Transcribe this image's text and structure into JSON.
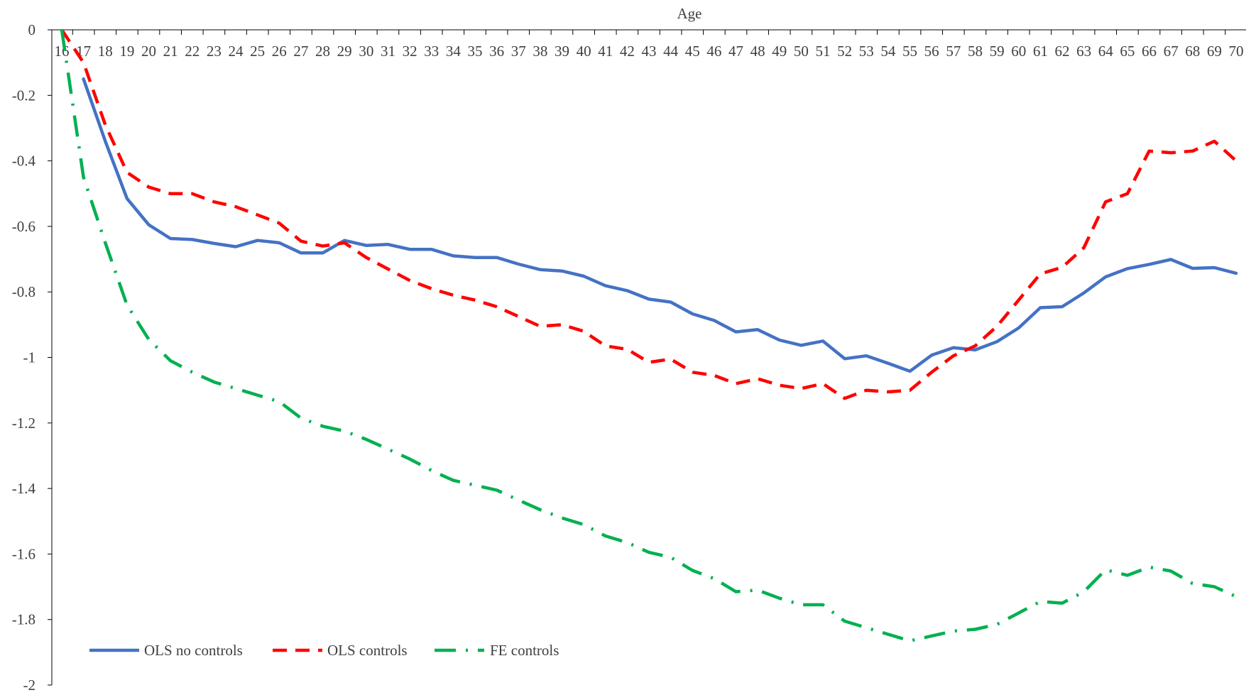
{
  "chart_data": {
    "type": "line",
    "title": "",
    "xlabel": "Age",
    "ylabel": "",
    "x": [
      16,
      17,
      18,
      19,
      20,
      21,
      22,
      23,
      24,
      25,
      26,
      27,
      28,
      29,
      30,
      31,
      32,
      33,
      34,
      35,
      36,
      37,
      38,
      39,
      40,
      41,
      42,
      43,
      44,
      45,
      46,
      47,
      48,
      49,
      50,
      51,
      52,
      53,
      54,
      55,
      56,
      57,
      58,
      59,
      60,
      61,
      62,
      63,
      64,
      65,
      66,
      67,
      68,
      69,
      70
    ],
    "ylim": [
      -2,
      0
    ],
    "yticks": [
      0,
      -0.2,
      -0.4,
      -0.6,
      -0.8,
      -1,
      -1.2,
      -1.4,
      -1.6,
      -1.8,
      -2
    ],
    "ytick_labels": [
      "0",
      "-0.2",
      "-0.4",
      "-0.6",
      "-0.8",
      "-1",
      "-1.2",
      "-1.4",
      "-1.6",
      "-1.8",
      "-2"
    ],
    "xtick_labels": [
      "16",
      "17",
      "18",
      "19",
      "20",
      "21",
      "22",
      "23",
      "24",
      "25",
      "26",
      "27",
      "28",
      "29",
      "30",
      "31",
      "32",
      "33",
      "34",
      "35",
      "36",
      "37",
      "38",
      "39",
      "40",
      "41",
      "42",
      "43",
      "44",
      "45",
      "46",
      "47",
      "48",
      "49",
      "50",
      "51",
      "52",
      "53",
      "54",
      "55",
      "56",
      "57",
      "58",
      "59",
      "60",
      "61",
      "62",
      "63",
      "64",
      "65",
      "66",
      "67",
      "68",
      "69",
      "70"
    ],
    "x_axis_position": "top",
    "grid": false,
    "legend_position": "bottom-left",
    "series": [
      {
        "name": "OLS no controls",
        "color": "#4472C4",
        "style": "solid",
        "values": [
          null,
          -0.15,
          -0.34,
          -0.515,
          -0.595,
          -0.637,
          -0.64,
          -0.652,
          -0.662,
          -0.643,
          -0.65,
          -0.681,
          -0.681,
          -0.643,
          -0.658,
          -0.655,
          -0.67,
          -0.67,
          -0.69,
          -0.695,
          -0.695,
          -0.715,
          -0.732,
          -0.736,
          -0.752,
          -0.781,
          -0.796,
          -0.822,
          -0.831,
          -0.867,
          -0.887,
          -0.922,
          -0.915,
          -0.947,
          -0.963,
          -0.95,
          -1.004,
          -0.995,
          -1.018,
          -1.042,
          -0.993,
          -0.97,
          -0.977,
          -0.952,
          -0.91,
          -0.848,
          -0.845,
          -0.803,
          -0.754,
          -0.729,
          -0.716,
          -0.701,
          -0.728,
          -0.726,
          -0.743
        ]
      },
      {
        "name": "OLS controls",
        "color": "#FF0000",
        "style": "dashed",
        "values": [
          0,
          -0.1,
          -0.29,
          -0.435,
          -0.48,
          -0.5,
          -0.5,
          -0.525,
          -0.54,
          -0.565,
          -0.59,
          -0.645,
          -0.66,
          -0.65,
          -0.695,
          -0.73,
          -0.765,
          -0.79,
          -0.81,
          -0.825,
          -0.845,
          -0.875,
          -0.905,
          -0.9,
          -0.92,
          -0.965,
          -0.975,
          -1.015,
          -1.005,
          -1.045,
          -1.055,
          -1.08,
          -1.065,
          -1.085,
          -1.095,
          -1.08,
          -1.125,
          -1.1,
          -1.105,
          -1.1,
          -1.045,
          -0.995,
          -0.965,
          -0.905,
          -0.825,
          -0.745,
          -0.725,
          -0.665,
          -0.525,
          -0.5,
          -0.37,
          -0.375,
          -0.37,
          -0.34,
          -0.4
        ]
      },
      {
        "name": "FE controls",
        "color": "#00B050",
        "style": "dashdot",
        "values": [
          0,
          -0.45,
          -0.65,
          -0.84,
          -0.945,
          -1.01,
          -1.045,
          -1.075,
          -1.095,
          -1.115,
          -1.135,
          -1.185,
          -1.21,
          -1.225,
          -1.25,
          -1.28,
          -1.31,
          -1.345,
          -1.375,
          -1.39,
          -1.405,
          -1.435,
          -1.465,
          -1.49,
          -1.51,
          -1.545,
          -1.565,
          -1.595,
          -1.61,
          -1.65,
          -1.675,
          -1.715,
          -1.71,
          -1.735,
          -1.755,
          -1.755,
          -1.805,
          -1.825,
          -1.845,
          -1.865,
          -1.85,
          -1.835,
          -1.83,
          -1.815,
          -1.78,
          -1.745,
          -1.75,
          -1.715,
          -1.648,
          -1.665,
          -1.64,
          -1.652,
          -1.69,
          -1.7,
          -1.73
        ]
      }
    ]
  }
}
